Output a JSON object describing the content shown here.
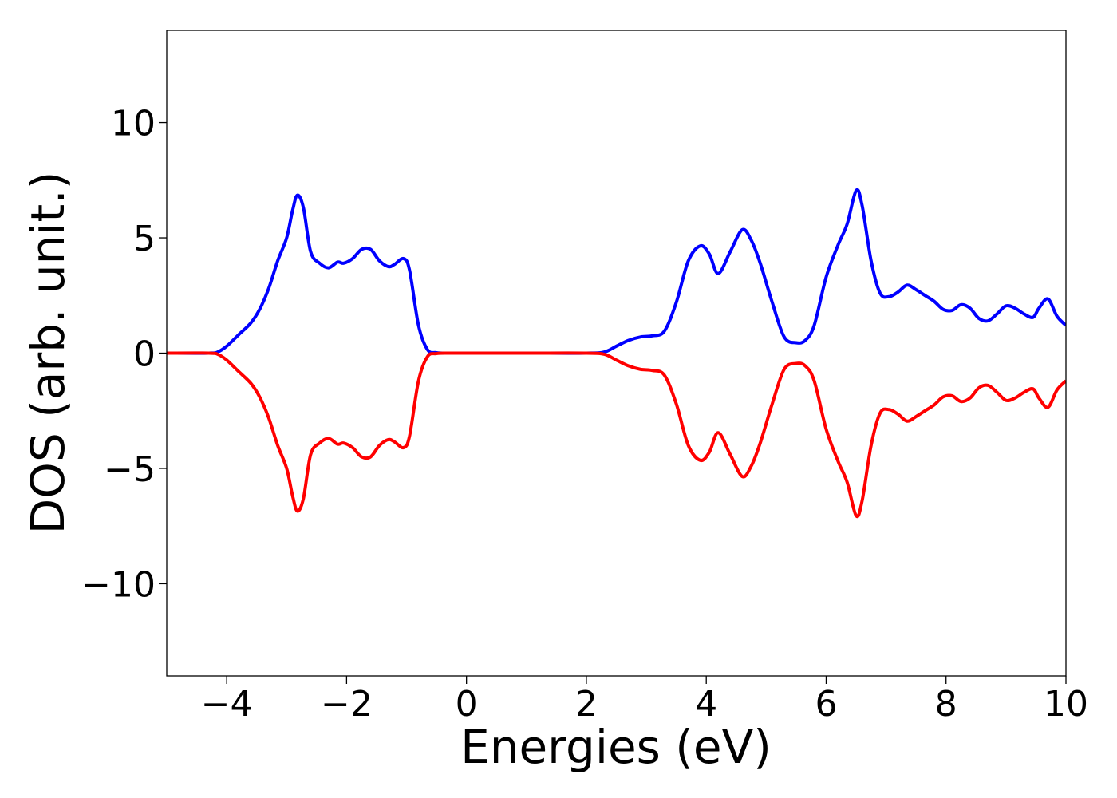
{
  "chart_data": {
    "type": "line",
    "title": "",
    "xlabel": "Energies (eV)",
    "ylabel": "DOS (arb. unit.)",
    "xlim": [
      -5,
      10
    ],
    "ylim": [
      -14,
      14
    ],
    "grid": false,
    "x_ticks": [
      -4,
      -2,
      0,
      2,
      4,
      6,
      8,
      10
    ],
    "x_tick_labels": [
      "−4",
      "−2",
      "0",
      "2",
      "4",
      "6",
      "8",
      "10"
    ],
    "y_ticks": [
      10,
      5,
      0,
      -5,
      -10
    ],
    "y_tick_labels": [
      "10",
      "5",
      "0",
      "−5",
      "−10"
    ],
    "series": [
      {
        "color": "#0000ff",
        "x": [
          -5.0,
          -4.3,
          -4.15,
          -4.0,
          -3.8,
          -3.6,
          -3.45,
          -3.3,
          -3.15,
          -3.0,
          -2.9,
          -2.82,
          -2.72,
          -2.6,
          -2.45,
          -2.3,
          -2.15,
          -2.05,
          -1.9,
          -1.75,
          -1.6,
          -1.45,
          -1.3,
          -1.2,
          -1.05,
          -0.95,
          -0.8,
          -0.65,
          -0.5,
          -0.3,
          0.0,
          1.0,
          2.0,
          2.3,
          2.5,
          2.7,
          2.9,
          3.1,
          3.3,
          3.5,
          3.7,
          3.9,
          4.05,
          4.2,
          4.4,
          4.6,
          4.75,
          4.9,
          5.1,
          5.3,
          5.5,
          5.65,
          5.8,
          6.0,
          6.2,
          6.35,
          6.5,
          6.6,
          6.75,
          6.9,
          7.05,
          7.2,
          7.35,
          7.5,
          7.65,
          7.8,
          7.95,
          8.1,
          8.25,
          8.4,
          8.55,
          8.7,
          8.85,
          9.0,
          9.15,
          9.3,
          9.45,
          9.55,
          9.7,
          9.85,
          10.0
        ],
        "y": [
          0,
          0,
          0.05,
          0.3,
          0.8,
          1.3,
          1.9,
          2.8,
          4.0,
          5.0,
          6.2,
          6.85,
          6.3,
          4.4,
          3.9,
          3.7,
          3.95,
          3.9,
          4.1,
          4.5,
          4.5,
          4.0,
          3.75,
          3.85,
          4.1,
          3.6,
          1.2,
          0.15,
          0.02,
          0,
          0,
          0,
          0,
          0.05,
          0.3,
          0.55,
          0.7,
          0.75,
          0.95,
          2.2,
          4.0,
          4.65,
          4.3,
          3.45,
          4.4,
          5.35,
          4.9,
          3.9,
          2.2,
          0.7,
          0.45,
          0.55,
          1.2,
          3.3,
          4.7,
          5.6,
          7.05,
          6.4,
          4.0,
          2.6,
          2.45,
          2.65,
          2.95,
          2.75,
          2.5,
          2.25,
          1.9,
          1.85,
          2.1,
          1.95,
          1.5,
          1.4,
          1.7,
          2.05,
          1.95,
          1.7,
          1.55,
          1.95,
          2.35,
          1.6,
          1.2
        ]
      },
      {
        "color": "#ff0000",
        "x": [
          -5.0,
          -4.3,
          -4.15,
          -4.0,
          -3.8,
          -3.6,
          -3.45,
          -3.3,
          -3.15,
          -3.0,
          -2.9,
          -2.82,
          -2.72,
          -2.6,
          -2.45,
          -2.3,
          -2.15,
          -2.05,
          -1.9,
          -1.75,
          -1.6,
          -1.45,
          -1.3,
          -1.2,
          -1.05,
          -0.95,
          -0.8,
          -0.65,
          -0.5,
          -0.3,
          0.0,
          1.0,
          2.0,
          2.3,
          2.5,
          2.7,
          2.9,
          3.1,
          3.3,
          3.5,
          3.7,
          3.9,
          4.05,
          4.2,
          4.4,
          4.6,
          4.75,
          4.9,
          5.1,
          5.3,
          5.5,
          5.65,
          5.8,
          6.0,
          6.2,
          6.35,
          6.5,
          6.6,
          6.75,
          6.9,
          7.05,
          7.2,
          7.35,
          7.5,
          7.65,
          7.8,
          7.95,
          8.1,
          8.25,
          8.4,
          8.55,
          8.7,
          8.85,
          9.0,
          9.15,
          9.3,
          9.45,
          9.55,
          9.7,
          9.85,
          10.0
        ],
        "y": [
          0,
          0,
          -0.05,
          -0.3,
          -0.8,
          -1.3,
          -1.9,
          -2.8,
          -4.0,
          -5.0,
          -6.2,
          -6.85,
          -6.3,
          -4.4,
          -3.9,
          -3.7,
          -3.95,
          -3.9,
          -4.1,
          -4.5,
          -4.5,
          -4.0,
          -3.75,
          -3.85,
          -4.1,
          -3.6,
          -1.2,
          -0.15,
          -0.02,
          0,
          0,
          0,
          0,
          -0.05,
          -0.3,
          -0.55,
          -0.7,
          -0.75,
          -0.95,
          -2.2,
          -4.0,
          -4.65,
          -4.3,
          -3.45,
          -4.4,
          -5.35,
          -4.9,
          -3.9,
          -2.2,
          -0.7,
          -0.45,
          -0.55,
          -1.2,
          -3.3,
          -4.7,
          -5.6,
          -7.05,
          -6.4,
          -4.0,
          -2.6,
          -2.45,
          -2.65,
          -2.95,
          -2.75,
          -2.5,
          -2.25,
          -1.9,
          -1.85,
          -2.1,
          -1.95,
          -1.5,
          -1.4,
          -1.7,
          -2.05,
          -1.95,
          -1.7,
          -1.55,
          -1.95,
          -2.35,
          -1.6,
          -1.2
        ]
      }
    ]
  }
}
